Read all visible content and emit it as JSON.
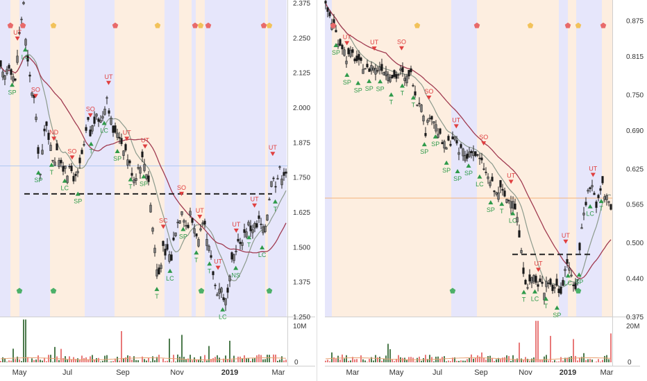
{
  "chart_data": [
    {
      "type": "candlestick",
      "panel": "left",
      "x_ticks": [
        "May",
        "Jul",
        "Sep",
        "Nov",
        "2019",
        "Mar"
      ],
      "y_ticks": [
        "2.375",
        "2.250",
        "2.125",
        "2.000",
        "1.875",
        "1.750",
        "1.625",
        "1.500",
        "1.375",
        "1.250"
      ],
      "y_range": [
        1.25,
        2.375
      ],
      "volume_ticks": [
        "10M",
        "0"
      ],
      "moving_averages": 2,
      "support_line": 1.69,
      "current_price_line": 1.79,
      "close_path": [
        [
          0,
          2.14
        ],
        [
          6,
          2.1
        ],
        [
          12,
          2.16
        ],
        [
          18,
          2.12
        ],
        [
          22,
          2.09
        ],
        [
          26,
          2.22
        ],
        [
          30,
          2.3
        ],
        [
          34,
          2.38
        ],
        [
          38,
          2.19
        ],
        [
          42,
          2.12
        ],
        [
          46,
          2.06
        ],
        [
          50,
          2.02
        ],
        [
          54,
          1.88
        ],
        [
          58,
          1.76
        ],
        [
          62,
          1.86
        ],
        [
          66,
          1.96
        ],
        [
          70,
          1.9
        ],
        [
          74,
          1.84
        ],
        [
          78,
          1.8
        ],
        [
          82,
          1.86
        ],
        [
          86,
          1.8
        ],
        [
          90,
          1.77
        ],
        [
          94,
          1.8
        ],
        [
          98,
          1.76
        ],
        [
          102,
          1.78
        ],
        [
          106,
          1.75
        ],
        [
          110,
          1.74
        ],
        [
          114,
          1.78
        ],
        [
          118,
          1.83
        ],
        [
          122,
          1.86
        ],
        [
          126,
          1.96
        ],
        [
          130,
          1.9
        ],
        [
          134,
          1.94
        ],
        [
          138,
          1.96
        ],
        [
          142,
          1.96
        ],
        [
          146,
          1.95
        ],
        [
          150,
          2.0
        ],
        [
          154,
          2.04
        ],
        [
          158,
          1.98
        ],
        [
          162,
          1.92
        ],
        [
          166,
          1.9
        ],
        [
          170,
          1.92
        ],
        [
          174,
          1.88
        ],
        [
          178,
          1.86
        ],
        [
          182,
          1.84
        ],
        [
          186,
          1.8
        ],
        [
          190,
          1.77
        ],
        [
          194,
          1.74
        ],
        [
          198,
          1.78
        ],
        [
          202,
          1.8
        ],
        [
          206,
          1.82
        ],
        [
          210,
          1.78
        ],
        [
          214,
          1.74
        ],
        [
          218,
          1.62
        ],
        [
          222,
          1.52
        ],
        [
          226,
          1.42
        ],
        [
          230,
          1.4
        ],
        [
          234,
          1.5
        ],
        [
          238,
          1.46
        ],
        [
          242,
          1.5
        ],
        [
          246,
          1.44
        ],
        [
          250,
          1.52
        ],
        [
          254,
          1.58
        ],
        [
          258,
          1.6
        ],
        [
          262,
          1.64
        ],
        [
          266,
          1.6
        ],
        [
          270,
          1.56
        ],
        [
          274,
          1.62
        ],
        [
          278,
          1.58
        ],
        [
          282,
          1.56
        ],
        [
          286,
          1.52
        ],
        [
          290,
          1.56
        ],
        [
          294,
          1.58
        ],
        [
          298,
          1.52
        ],
        [
          302,
          1.48
        ],
        [
          306,
          1.42
        ],
        [
          310,
          1.36
        ],
        [
          314,
          1.34
        ],
        [
          318,
          1.36
        ],
        [
          322,
          1.32
        ],
        [
          326,
          1.3
        ],
        [
          330,
          1.36
        ],
        [
          334,
          1.44
        ],
        [
          338,
          1.48
        ],
        [
          342,
          1.52
        ],
        [
          346,
          1.5
        ],
        [
          350,
          1.54
        ],
        [
          354,
          1.56
        ],
        [
          358,
          1.58
        ],
        [
          362,
          1.56
        ],
        [
          366,
          1.58
        ],
        [
          370,
          1.57
        ],
        [
          374,
          1.6
        ],
        [
          378,
          1.55
        ],
        [
          382,
          1.58
        ],
        [
          386,
          1.64
        ],
        [
          390,
          1.72
        ],
        [
          394,
          1.76
        ],
        [
          398,
          1.72
        ],
        [
          402,
          1.78
        ],
        [
          406,
          1.76
        ],
        [
          410,
          1.77
        ]
      ],
      "markers": [
        {
          "label": "SP",
          "dir": "up"
        },
        {
          "label": "LC",
          "dir": "up"
        },
        {
          "label": "SP",
          "dir": "up"
        },
        {
          "label": "T",
          "dir": "up"
        },
        {
          "label": "LC",
          "dir": "up"
        },
        {
          "label": "SP",
          "dir": "up"
        },
        {
          "label": "T",
          "dir": "up"
        },
        {
          "label": "LC",
          "dir": "up"
        },
        {
          "label": "SP",
          "dir": "up"
        },
        {
          "label": "T",
          "dir": "up"
        },
        {
          "label": "SP",
          "dir": "up"
        },
        {
          "label": "T",
          "dir": "up"
        },
        {
          "label": "LC",
          "dir": "up"
        },
        {
          "label": "SP",
          "dir": "up"
        },
        {
          "label": "T",
          "dir": "up"
        },
        {
          "label": "T",
          "dir": "up"
        },
        {
          "label": "LC",
          "dir": "up"
        },
        {
          "label": "NS",
          "dir": "up"
        },
        {
          "label": "T",
          "dir": "up"
        },
        {
          "label": "LC",
          "dir": "up"
        },
        {
          "label": "T",
          "dir": "up"
        },
        {
          "label": "UT",
          "dir": "down"
        },
        {
          "label": "SO",
          "dir": "down"
        },
        {
          "label": "ND",
          "dir": "down"
        },
        {
          "label": "SO",
          "dir": "down"
        },
        {
          "label": "SO",
          "dir": "down"
        },
        {
          "label": "UT",
          "dir": "down"
        },
        {
          "label": "UT",
          "dir": "down"
        },
        {
          "label": "UT",
          "dir": "down"
        },
        {
          "label": "SC",
          "dir": "down"
        },
        {
          "label": "SO",
          "dir": "down"
        },
        {
          "label": "UT",
          "dir": "down"
        },
        {
          "label": "UT",
          "dir": "down"
        },
        {
          "label": "UT",
          "dir": "down"
        },
        {
          "label": "UT",
          "dir": "down"
        },
        {
          "label": "UT",
          "dir": "down"
        }
      ]
    },
    {
      "type": "candlestick",
      "panel": "right",
      "x_ticks": [
        "Mar",
        "May",
        "Jul",
        "Sep",
        "Nov",
        "2019",
        "Mar"
      ],
      "y_ticks": [
        "0.875",
        "0.815",
        "0.750",
        "0.690",
        "0.625",
        "0.565",
        "0.500",
        "0.440",
        "0.375"
      ],
      "y_range": [
        0.375,
        0.905
      ],
      "volume_ticks": [
        "20M",
        "0"
      ],
      "moving_averages": 2,
      "support_line": 0.48,
      "current_price_line": 0.575,
      "close_path": [
        [
          0,
          0.9
        ],
        [
          8,
          0.88
        ],
        [
          14,
          0.86
        ],
        [
          20,
          0.84
        ],
        [
          26,
          0.83
        ],
        [
          32,
          0.81
        ],
        [
          38,
          0.82
        ],
        [
          44,
          0.81
        ],
        [
          50,
          0.8
        ],
        [
          56,
          0.8
        ],
        [
          62,
          0.79
        ],
        [
          68,
          0.8
        ],
        [
          74,
          0.79
        ],
        [
          80,
          0.8
        ],
        [
          86,
          0.79
        ],
        [
          92,
          0.79
        ],
        [
          98,
          0.78
        ],
        [
          104,
          0.78
        ],
        [
          110,
          0.79
        ],
        [
          116,
          0.77
        ],
        [
          122,
          0.79
        ],
        [
          128,
          0.77
        ],
        [
          134,
          0.73
        ],
        [
          138,
          0.75
        ],
        [
          142,
          0.71
        ],
        [
          146,
          0.68
        ],
        [
          150,
          0.72
        ],
        [
          156,
          0.71
        ],
        [
          162,
          0.69
        ],
        [
          168,
          0.67
        ],
        [
          174,
          0.66
        ],
        [
          180,
          0.67
        ],
        [
          186,
          0.68
        ],
        [
          192,
          0.65
        ],
        [
          198,
          0.66
        ],
        [
          204,
          0.64
        ],
        [
          210,
          0.66
        ],
        [
          216,
          0.65
        ],
        [
          222,
          0.64
        ],
        [
          228,
          0.63
        ],
        [
          234,
          0.61
        ],
        [
          240,
          0.6
        ],
        [
          246,
          0.58
        ],
        [
          252,
          0.59
        ],
        [
          258,
          0.58
        ],
        [
          264,
          0.57
        ],
        [
          270,
          0.58
        ],
        [
          276,
          0.55
        ],
        [
          280,
          0.51
        ],
        [
          284,
          0.47
        ],
        [
          288,
          0.44
        ],
        [
          292,
          0.43
        ],
        [
          296,
          0.43
        ],
        [
          300,
          0.45
        ],
        [
          304,
          0.43
        ],
        [
          308,
          0.42
        ],
        [
          312,
          0.44
        ],
        [
          316,
          0.42
        ],
        [
          320,
          0.44
        ],
        [
          324,
          0.43
        ],
        [
          328,
          0.42
        ],
        [
          332,
          0.43
        ],
        [
          336,
          0.42
        ],
        [
          340,
          0.42
        ],
        [
          344,
          0.44
        ],
        [
          348,
          0.47
        ],
        [
          352,
          0.46
        ],
        [
          356,
          0.43
        ],
        [
          360,
          0.42
        ],
        [
          364,
          0.44
        ],
        [
          368,
          0.5
        ],
        [
          372,
          0.55
        ],
        [
          376,
          0.57
        ],
        [
          380,
          0.59
        ],
        [
          384,
          0.6
        ],
        [
          388,
          0.58
        ],
        [
          392,
          0.56
        ],
        [
          396,
          0.58
        ],
        [
          400,
          0.6
        ],
        [
          404,
          0.57
        ],
        [
          408,
          0.58
        ],
        [
          412,
          0.56
        ],
        [
          414,
          0.58
        ]
      ],
      "markers": [
        {
          "label": "SP",
          "dir": "up"
        },
        {
          "label": "SP",
          "dir": "up"
        },
        {
          "label": "SP",
          "dir": "up"
        },
        {
          "label": "SP",
          "dir": "up"
        },
        {
          "label": "SP",
          "dir": "up"
        },
        {
          "label": "T",
          "dir": "up"
        },
        {
          "label": "T",
          "dir": "up"
        },
        {
          "label": "T",
          "dir": "up"
        },
        {
          "label": "SP",
          "dir": "up"
        },
        {
          "label": "SP",
          "dir": "up"
        },
        {
          "label": "SP",
          "dir": "up"
        },
        {
          "label": "SP",
          "dir": "up"
        },
        {
          "label": "SP",
          "dir": "up"
        },
        {
          "label": "LC",
          "dir": "up"
        },
        {
          "label": "SP",
          "dir": "up"
        },
        {
          "label": "T",
          "dir": "up"
        },
        {
          "label": "LC",
          "dir": "up"
        },
        {
          "label": "T",
          "dir": "up"
        },
        {
          "label": "LC",
          "dir": "up"
        },
        {
          "label": "T",
          "dir": "up"
        },
        {
          "label": "SP",
          "dir": "up"
        },
        {
          "label": "LC",
          "dir": "up"
        },
        {
          "label": "SP",
          "dir": "up"
        },
        {
          "label": "LC",
          "dir": "up"
        },
        {
          "label": "T",
          "dir": "up"
        },
        {
          "label": "UT",
          "dir": "down"
        },
        {
          "label": "UT",
          "dir": "down"
        },
        {
          "label": "SO",
          "dir": "down"
        },
        {
          "label": "SO",
          "dir": "down"
        },
        {
          "label": "UT",
          "dir": "down"
        },
        {
          "label": "SO",
          "dir": "down"
        },
        {
          "label": "UT",
          "dir": "down"
        },
        {
          "label": "UT",
          "dir": "down"
        },
        {
          "label": "UT",
          "dir": "down"
        },
        {
          "label": "UT",
          "dir": "down"
        }
      ]
    }
  ],
  "colors": {
    "background": "#ffffff",
    "band_blue": "#e6e6fb",
    "band_orange": "#fdeee0",
    "up_candle": "#3d3d3d",
    "down_candle": "#1a1a1a",
    "ma_fast": "#8c9a8c",
    "ma_slow": "#a03a50",
    "up_marker": "#2e9a4a",
    "down_marker": "#e04040",
    "pentagon_red": "#e86a6a",
    "pentagon_yellow": "#f2c25a",
    "pentagon_green": "#4cb068",
    "vol_green": "#4c7a4c",
    "vol_red": "#e87878",
    "axis_text": "#333333",
    "support": "#222222",
    "price_line_left": "#b0c8f0",
    "price_line_right": "#f2b27a"
  }
}
